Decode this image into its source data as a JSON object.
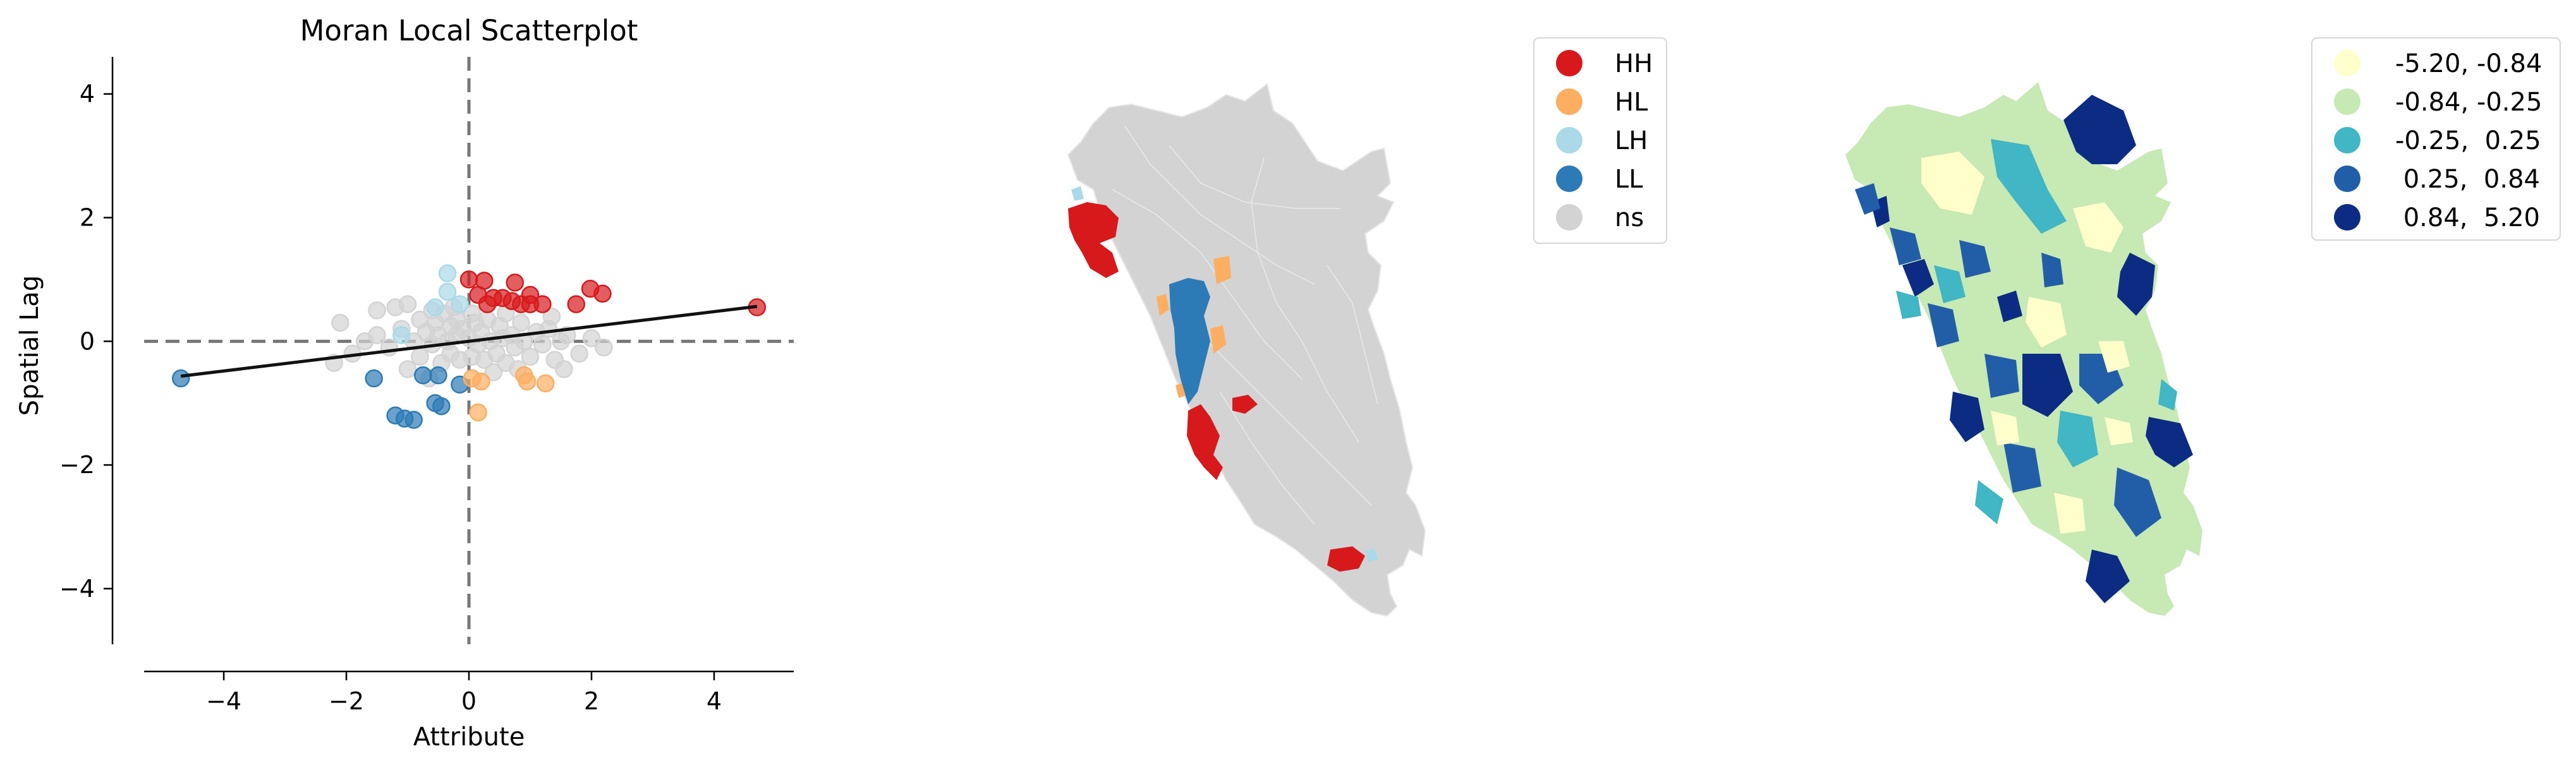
{
  "chart_data": [
    {
      "type": "scatter",
      "title": "Moran Local Scatterplot",
      "xlabel": "Attribute",
      "ylabel": "Spatial Lag",
      "xlim": [
        -5.3,
        5.3
      ],
      "ylim": [
        -4.9,
        4.6
      ],
      "xticks": [
        -4,
        -2,
        0,
        2,
        4
      ],
      "yticks": [
        -4,
        -2,
        0,
        2,
        4
      ],
      "xtick_labels": [
        "−4",
        "−2",
        "0",
        "2",
        "4"
      ],
      "ytick_labels": [
        "−4",
        "−2",
        "0",
        "2",
        "4"
      ],
      "fit_line": {
        "slope": 0.12,
        "intercept": 0.0,
        "x_range": [
          -4.7,
          4.7
        ]
      },
      "reference_lines": {
        "x": 0,
        "y": 0,
        "style": "dashed"
      },
      "series": [
        {
          "color": "#d7191c",
          "points": [
            [
              0.0,
              1.0
            ],
            [
              0.25,
              0.98
            ],
            [
              0.3,
              0.6
            ],
            [
              0.4,
              0.7
            ],
            [
              0.55,
              0.7
            ],
            [
              0.7,
              0.65
            ],
            [
              0.75,
              0.95
            ],
            [
              0.85,
              0.6
            ],
            [
              1.0,
              0.6
            ],
            [
              1.0,
              0.75
            ],
            [
              1.2,
              0.6
            ],
            [
              1.75,
              0.6
            ],
            [
              1.98,
              0.85
            ],
            [
              2.18,
              0.77
            ],
            [
              4.7,
              0.55
            ],
            [
              0.15,
              0.75
            ]
          ]
        },
        {
          "color": "#fdae61",
          "points": [
            [
              0.05,
              -0.6
            ],
            [
              0.2,
              -0.65
            ],
            [
              0.15,
              -1.15
            ],
            [
              0.95,
              -0.65
            ],
            [
              1.25,
              -0.68
            ],
            [
              0.9,
              -0.55
            ]
          ]
        },
        {
          "color": "#abd9e9",
          "points": [
            [
              -0.35,
              1.1
            ],
            [
              -0.35,
              0.8
            ],
            [
              -0.55,
              0.55
            ],
            [
              -0.15,
              0.6
            ],
            [
              -1.1,
              0.1
            ]
          ]
        },
        {
          "color": "#2c7bb6",
          "points": [
            [
              -4.7,
              -0.6
            ],
            [
              -1.55,
              -0.6
            ],
            [
              -1.2,
              -1.2
            ],
            [
              -1.05,
              -1.25
            ],
            [
              -0.9,
              -1.27
            ],
            [
              -0.75,
              -0.55
            ],
            [
              -0.5,
              -0.55
            ],
            [
              -0.55,
              -1.0
            ],
            [
              -0.45,
              -1.05
            ],
            [
              -0.15,
              -0.7
            ]
          ]
        },
        {
          "color": "#d3d3d3",
          "points": [
            [
              -2.1,
              0.3
            ],
            [
              -1.5,
              0.5
            ],
            [
              -1.2,
              0.55
            ],
            [
              -1.0,
              0.6
            ],
            [
              -0.8,
              0.35
            ],
            [
              -0.6,
              0.5
            ],
            [
              -0.55,
              0.3
            ],
            [
              -0.4,
              0.45
            ],
            [
              -0.3,
              0.25
            ],
            [
              -0.2,
              0.35
            ],
            [
              -1.9,
              -0.2
            ],
            [
              -1.7,
              0.0
            ],
            [
              -1.5,
              0.1
            ],
            [
              -1.3,
              -0.1
            ],
            [
              -1.1,
              0.2
            ],
            [
              -0.9,
              0.0
            ],
            [
              -0.8,
              -0.25
            ],
            [
              -0.7,
              0.15
            ],
            [
              -0.6,
              -0.05
            ],
            [
              -0.5,
              0.1
            ],
            [
              -0.45,
              -0.35
            ],
            [
              -0.35,
              0.0
            ],
            [
              -0.3,
              -0.2
            ],
            [
              -0.2,
              0.1
            ],
            [
              -0.15,
              -0.3
            ],
            [
              -0.1,
              0.2
            ],
            [
              0.0,
              0.05
            ],
            [
              0.05,
              -0.25
            ],
            [
              0.1,
              0.3
            ],
            [
              0.15,
              -0.05
            ],
            [
              0.2,
              0.15
            ],
            [
              0.25,
              -0.3
            ],
            [
              0.3,
              0.35
            ],
            [
              0.35,
              0.0
            ],
            [
              0.45,
              -0.2
            ],
            [
              0.5,
              0.25
            ],
            [
              0.55,
              0.05
            ],
            [
              0.6,
              -0.35
            ],
            [
              0.7,
              0.1
            ],
            [
              0.75,
              -0.1
            ],
            [
              0.85,
              0.3
            ],
            [
              0.9,
              0.0
            ],
            [
              1.0,
              -0.25
            ],
            [
              1.1,
              0.15
            ],
            [
              1.2,
              -0.05
            ],
            [
              1.3,
              0.2
            ],
            [
              1.4,
              -0.3
            ],
            [
              1.5,
              0.0
            ],
            [
              1.6,
              0.1
            ],
            [
              1.8,
              -0.2
            ],
            [
              2.0,
              0.05
            ],
            [
              2.2,
              -0.1
            ],
            [
              -2.2,
              -0.35
            ],
            [
              -1.0,
              -0.45
            ],
            [
              -0.65,
              -0.6
            ],
            [
              0.4,
              -0.5
            ],
            [
              0.8,
              -0.45
            ],
            [
              1.55,
              -0.45
            ],
            [
              -0.25,
              0.55
            ],
            [
              0.05,
              0.45
            ],
            [
              0.6,
              0.45
            ],
            [
              1.35,
              0.4
            ]
          ]
        }
      ]
    },
    {
      "type": "map",
      "legend_placement": "upper-right",
      "legend": [
        {
          "label": "HH",
          "color": "#d7191c"
        },
        {
          "label": "HL",
          "color": "#fdae61"
        },
        {
          "label": "LH",
          "color": "#abd9e9"
        },
        {
          "label": "LL",
          "color": "#2c7bb6"
        },
        {
          "label": "ns",
          "color": "#d3d3d3"
        }
      ]
    },
    {
      "type": "map",
      "legend_placement": "upper-right",
      "legend": [
        {
          "label": "-5.20, -0.84",
          "color": "#ffffcc"
        },
        {
          "label": "-0.84, -0.25",
          "color": "#c7e9b4"
        },
        {
          "label": "-0.25,  0.25",
          "color": "#41b6c4"
        },
        {
          "label": " 0.25,  0.84",
          "color": "#225ea8"
        },
        {
          "label": " 0.84,  5.20",
          "color": "#0c2c84"
        }
      ]
    }
  ]
}
